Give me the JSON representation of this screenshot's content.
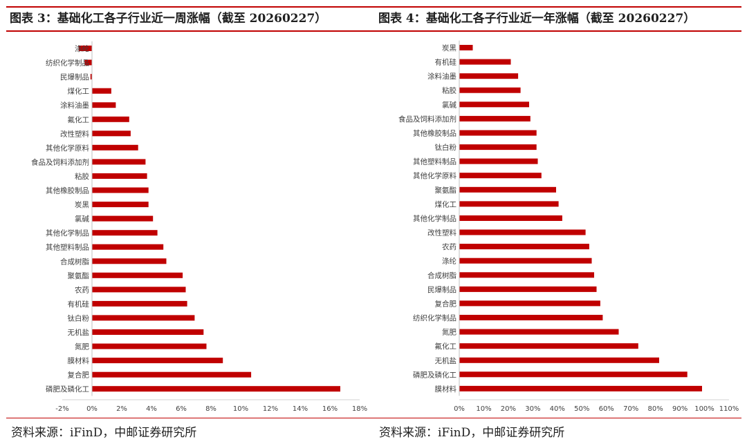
{
  "titles": {
    "fig3": "图表 3：基础化工各子行业近一周涨幅（截至 20260227）",
    "fig4": "图表 4：基础化工各子行业近一年涨幅（截至 20260227）"
  },
  "sources": {
    "left": "资料来源：iFinD，中邮证券研究所",
    "right": "资料来源：iFinD，中邮证券研究所"
  },
  "colors": {
    "bar": "#c00000",
    "rule": "#c00000"
  },
  "chart_data": [
    {
      "type": "bar",
      "orientation": "horizontal",
      "title": "",
      "xlabel": "",
      "ylabel": "",
      "categories": [
        "涤纶",
        "纺织化学制品",
        "民爆制品",
        "煤化工",
        "涂料油墨",
        "氟化工",
        "改性塑料",
        "其他化学原料",
        "食品及饲料添加剂",
        "粘胶",
        "其他橡胶制品",
        "炭黑",
        "氯碱",
        "其他化学制品",
        "其他塑料制品",
        "合成树脂",
        "聚氨酯",
        "农药",
        "有机硅",
        "钛白粉",
        "无机盐",
        "氮肥",
        "膜材料",
        "复合肥",
        "磷肥及磷化工"
      ],
      "values": [
        -0.9,
        -0.5,
        -0.1,
        1.3,
        1.6,
        2.5,
        2.6,
        3.1,
        3.6,
        3.7,
        3.8,
        3.8,
        4.1,
        4.4,
        4.8,
        5.0,
        6.1,
        6.3,
        6.4,
        6.9,
        7.5,
        7.7,
        8.8,
        10.7,
        16.7
      ],
      "xlim": [
        -2,
        18
      ],
      "xticks": [
        "-2%",
        "0%",
        "2%",
        "4%",
        "6%",
        "8%",
        "10%",
        "12%",
        "14%",
        "16%",
        "18%"
      ],
      "grid": false,
      "legend": "none"
    },
    {
      "type": "bar",
      "orientation": "horizontal",
      "title": "",
      "xlabel": "",
      "ylabel": "",
      "categories": [
        "炭黑",
        "有机硅",
        "涂料油墨",
        "粘胶",
        "氯碱",
        "食品及饲料添加剂",
        "其他橡胶制品",
        "钛白粉",
        "其他塑料制品",
        "其他化学原料",
        "聚氨酯",
        "煤化工",
        "其他化学制品",
        "改性塑料",
        "农药",
        "涤纶",
        "合成树脂",
        "民爆制品",
        "复合肥",
        "纺织化学制品",
        "氮肥",
        "氟化工",
        "无机盐",
        "磷肥及磷化工",
        "膜材料"
      ],
      "values": [
        5.5,
        21,
        24,
        25,
        28.5,
        29,
        31.5,
        31.5,
        32,
        33.5,
        39.5,
        40.5,
        42,
        51.5,
        53,
        54,
        55,
        56,
        57.5,
        58.5,
        65,
        73,
        81.5,
        93,
        99
      ],
      "xlim": [
        0,
        110
      ],
      "xticks": [
        "0%",
        "10%",
        "20%",
        "30%",
        "40%",
        "50%",
        "60%",
        "70%",
        "80%",
        "90%",
        "100%",
        "110%"
      ],
      "grid": false,
      "legend": "none"
    }
  ]
}
